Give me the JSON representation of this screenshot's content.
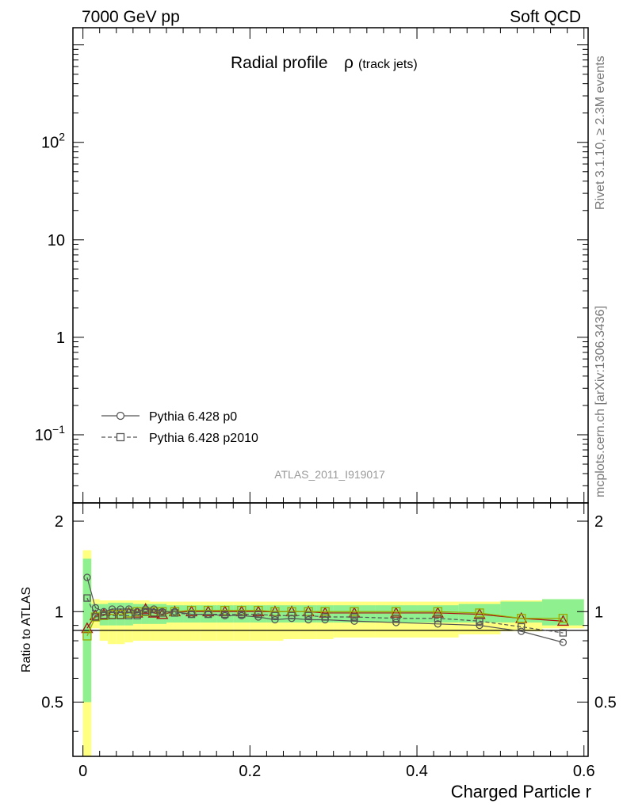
{
  "header": {
    "left": "7000 GeV pp",
    "right": "Soft QCD"
  },
  "side": {
    "rivet": "Rivet 3.1.10, ≥ 2.3M events",
    "mcplots": "mcplots.cern.ch [arXiv:1306.3436]"
  },
  "chart_data": {
    "type": "line",
    "title_main": "Radial profile",
    "title_symbol": "ρ",
    "title_sub": "(track jets)",
    "analysis_id": "ATLAS_2011_I919017",
    "xlabel": "Charged Particle r",
    "ylabel": "Ratio to ATLAS",
    "xlim": [
      -0.012,
      0.605
    ],
    "main_ylim": [
      0.02,
      1500
    ],
    "main_yticks": [
      {
        "v": 0.1,
        "base": "10",
        "exp": "−1"
      },
      {
        "v": 1,
        "label": "1"
      },
      {
        "v": 10,
        "label": "10"
      },
      {
        "v": 100,
        "base": "10",
        "exp": "2"
      }
    ],
    "ratio_ylim": [
      0.33,
      2.3
    ],
    "ratio_yticks": [
      {
        "v": 0.5,
        "label": "0.5"
      },
      {
        "v": 1,
        "label": "1"
      },
      {
        "v": 2,
        "label": "2"
      }
    ],
    "xticks": [
      {
        "v": 0,
        "label": "0"
      },
      {
        "v": 0.2,
        "label": "0.2"
      },
      {
        "v": 0.4,
        "label": "0.4"
      },
      {
        "v": 0.6,
        "label": "0.6"
      }
    ],
    "legend": {
      "position": "bottom-left"
    },
    "band_edges": [
      0.0,
      0.01,
      0.02,
      0.03,
      0.04,
      0.05,
      0.06,
      0.07,
      0.08,
      0.09,
      0.1,
      0.12,
      0.14,
      0.16,
      0.18,
      0.2,
      0.22,
      0.24,
      0.26,
      0.28,
      0.3,
      0.35,
      0.4,
      0.45,
      0.5,
      0.55,
      0.6
    ],
    "band_stat": [
      [
        0.5,
        1.5
      ],
      [
        0.94,
        1.06
      ],
      [
        0.9,
        1.06
      ],
      [
        0.9,
        1.07
      ],
      [
        0.9,
        1.07
      ],
      [
        0.9,
        1.07
      ],
      [
        0.91,
        1.06
      ],
      [
        0.91,
        1.06
      ],
      [
        0.91,
        1.06
      ],
      [
        0.91,
        1.06
      ],
      [
        0.92,
        1.05
      ],
      [
        0.92,
        1.05
      ],
      [
        0.92,
        1.05
      ],
      [
        0.92,
        1.05
      ],
      [
        0.92,
        1.05
      ],
      [
        0.92,
        1.05
      ],
      [
        0.92,
        1.05
      ],
      [
        0.92,
        1.05
      ],
      [
        0.92,
        1.05
      ],
      [
        0.92,
        1.05
      ],
      [
        0.92,
        1.05
      ],
      [
        0.92,
        1.05
      ],
      [
        0.92,
        1.05
      ],
      [
        0.92,
        1.06
      ],
      [
        0.92,
        1.08
      ],
      [
        0.9,
        1.1
      ]
    ],
    "band_total": [
      [
        0.33,
        1.6
      ],
      [
        0.88,
        1.1
      ],
      [
        0.8,
        1.09
      ],
      [
        0.78,
        1.09
      ],
      [
        0.78,
        1.09
      ],
      [
        0.79,
        1.09
      ],
      [
        0.8,
        1.09
      ],
      [
        0.8,
        1.09
      ],
      [
        0.8,
        1.08
      ],
      [
        0.8,
        1.08
      ],
      [
        0.8,
        1.08
      ],
      [
        0.8,
        1.08
      ],
      [
        0.8,
        1.08
      ],
      [
        0.8,
        1.08
      ],
      [
        0.8,
        1.08
      ],
      [
        0.8,
        1.08
      ],
      [
        0.8,
        1.08
      ],
      [
        0.81,
        1.08
      ],
      [
        0.81,
        1.08
      ],
      [
        0.81,
        1.08
      ],
      [
        0.82,
        1.08
      ],
      [
        0.82,
        1.08
      ],
      [
        0.82,
        1.08
      ],
      [
        0.84,
        1.08
      ],
      [
        0.86,
        1.09
      ],
      [
        0.88,
        1.1
      ]
    ],
    "series": [
      {
        "name": "Pythia 6.428 p0",
        "style": "solid",
        "marker": "circle",
        "color": "#555555",
        "x": [
          0.005,
          0.015,
          0.025,
          0.035,
          0.045,
          0.055,
          0.065,
          0.075,
          0.085,
          0.095,
          0.11,
          0.13,
          0.15,
          0.17,
          0.19,
          0.21,
          0.23,
          0.25,
          0.27,
          0.29,
          0.325,
          0.375,
          0.425,
          0.475,
          0.525,
          0.575
        ],
        "values": [
          1.3,
          1.03,
          1.0,
          1.02,
          1.02,
          1.02,
          1.0,
          1.02,
          1.02,
          1.0,
          1.0,
          0.98,
          0.98,
          0.97,
          0.97,
          0.96,
          0.94,
          0.95,
          0.94,
          0.94,
          0.93,
          0.92,
          0.91,
          0.9,
          0.86,
          0.79
        ]
      },
      {
        "name": "Pythia 6.428 p2010",
        "style": "dashed",
        "marker": "square",
        "color": "#555555",
        "x": [
          0.005,
          0.015,
          0.025,
          0.035,
          0.045,
          0.055,
          0.065,
          0.075,
          0.085,
          0.095,
          0.11,
          0.13,
          0.15,
          0.17,
          0.19,
          0.21,
          0.23,
          0.25,
          0.27,
          0.29,
          0.325,
          0.375,
          0.425,
          0.475,
          0.525,
          0.575
        ],
        "values": [
          1.11,
          0.96,
          0.97,
          0.97,
          0.97,
          0.97,
          0.97,
          1.0,
          0.99,
          0.99,
          0.99,
          0.98,
          0.98,
          0.98,
          0.98,
          0.98,
          0.97,
          0.97,
          0.97,
          0.96,
          0.96,
          0.95,
          0.95,
          0.93,
          0.89,
          0.85
        ]
      }
    ],
    "overlay_series": [
      {
        "marker": "triangle",
        "color": "#aa1111",
        "x": [
          0.005,
          0.015,
          0.025,
          0.035,
          0.045,
          0.055,
          0.065,
          0.075,
          0.085,
          0.095,
          0.11,
          0.13,
          0.15,
          0.17,
          0.19,
          0.21,
          0.23,
          0.25,
          0.27,
          0.29,
          0.325,
          0.375,
          0.425,
          0.475,
          0.525,
          0.575
        ],
        "values": [
          0.88,
          0.97,
          0.98,
          0.98,
          0.98,
          0.99,
          0.99,
          1.02,
          0.99,
          0.98,
          1.0,
          1.0,
          1.0,
          1.0,
          1.0,
          1.0,
          1.0,
          1.0,
          1.0,
          0.99,
          0.99,
          0.99,
          0.99,
          0.98,
          0.95,
          0.93
        ]
      },
      {
        "marker": "square",
        "color": "#99aa00",
        "x": [
          0.005,
          0.015,
          0.025,
          0.035,
          0.045,
          0.055,
          0.065,
          0.075,
          0.085,
          0.095,
          0.11,
          0.13,
          0.15,
          0.17,
          0.19,
          0.21,
          0.23,
          0.25,
          0.27,
          0.29,
          0.325,
          0.375,
          0.425,
          0.475,
          0.525,
          0.575
        ],
        "values": [
          0.83,
          0.96,
          0.97,
          0.98,
          0.98,
          0.99,
          1.0,
          1.0,
          1.0,
          1.0,
          1.0,
          1.01,
          1.01,
          1.01,
          1.01,
          1.01,
          1.0,
          1.0,
          1.0,
          1.0,
          1.0,
          1.0,
          1.0,
          0.99,
          0.95,
          0.95
        ]
      }
    ]
  }
}
